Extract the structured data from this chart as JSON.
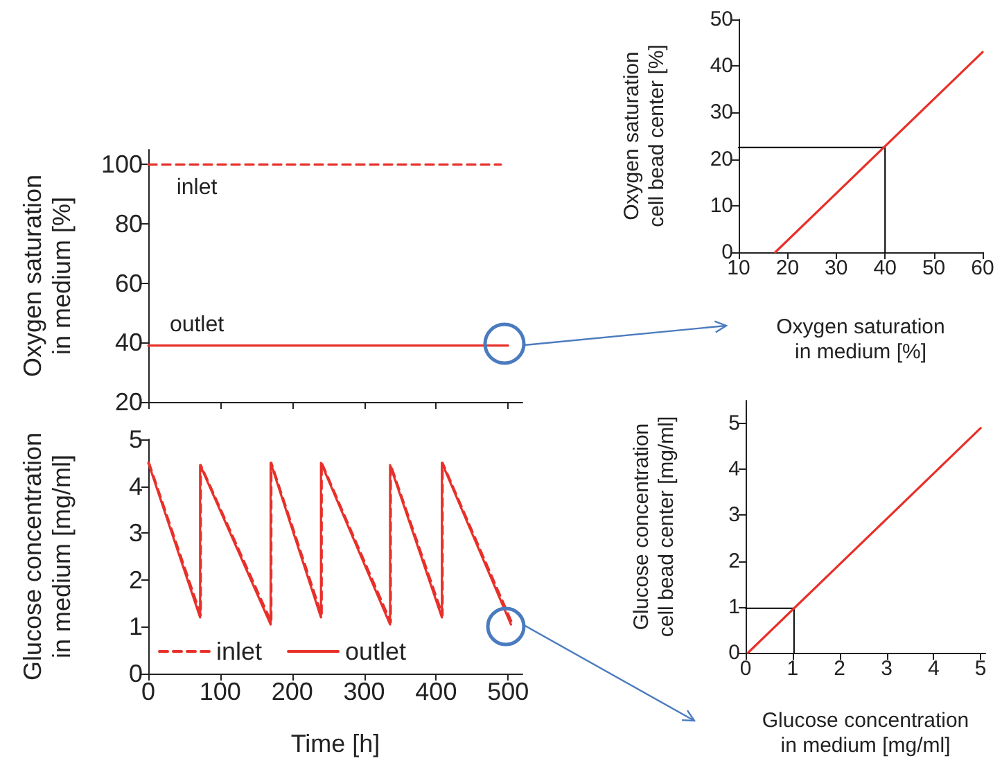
{
  "chart_data": [
    {
      "type": "line",
      "ylabel": "Oxygen saturation\nin medium [%]",
      "xlim": [
        0,
        520
      ],
      "xticks": [
        0,
        100,
        200,
        300,
        400,
        500
      ],
      "ylim": [
        20,
        105
      ],
      "yticks": [
        20,
        40,
        60,
        80,
        100
      ],
      "tick_labels": "y",
      "legend": false,
      "marker": "none",
      "series": [
        {
          "name": "inlet",
          "color": "#e8302a",
          "line_style": "dashed",
          "x": [
            0,
            490
          ],
          "values": [
            100,
            100
          ]
        },
        {
          "name": "outlet",
          "color": "#e8302a",
          "line_style": "solid",
          "x": [
            0,
            500
          ],
          "values": [
            39,
            39
          ]
        }
      ]
    },
    {
      "type": "line",
      "xlabel": "Time [h]",
      "ylabel": "Glucose concentration\nin medium [mg/ml]",
      "xlim": [
        0,
        520
      ],
      "xticks": [
        0,
        100,
        200,
        300,
        400,
        500
      ],
      "ylim": [
        0,
        5
      ],
      "yticks": [
        0,
        1,
        2,
        3,
        4,
        5
      ],
      "legend": "bottom left",
      "marker": "none",
      "series": [
        {
          "name": "inlet",
          "color": "#e8302a",
          "line_style": "dashed",
          "x": [
            1,
            73,
            73,
            171,
            171,
            241,
            241,
            337,
            337,
            409,
            409,
            505
          ],
          "values": [
            4.5,
            1.25,
            4.45,
            1.1,
            4.5,
            1.25,
            4.5,
            1.1,
            4.45,
            1.25,
            4.5,
            1.1
          ]
        },
        {
          "name": "outlet",
          "color": "#e8302a",
          "line_style": "solid",
          "x": [
            0,
            72,
            72,
            170,
            170,
            240,
            240,
            336,
            336,
            408,
            408,
            504
          ],
          "values": [
            4.5,
            1.2,
            4.45,
            1.05,
            4.5,
            1.2,
            4.5,
            1.05,
            4.45,
            1.2,
            4.5,
            1.05
          ]
        }
      ]
    },
    {
      "type": "line",
      "xlabel": "Oxygen saturation\nin medium [%]",
      "ylabel": "Oxygen saturation\ncell bead center [%]",
      "xlim": [
        10,
        60
      ],
      "xticks": [
        10,
        20,
        30,
        40,
        50,
        60
      ],
      "ylim": [
        0,
        50
      ],
      "yticks": [
        0,
        10,
        20,
        30,
        40,
        50
      ],
      "legend": false,
      "marker": "none",
      "series": [
        {
          "color": "#e8302a",
          "line_style": "solid",
          "x": [
            17.5,
            60
          ],
          "values": [
            0,
            43
          ]
        },
        {
          "color": "#000000",
          "line_style": "solid",
          "x": [
            10,
            40,
            40
          ],
          "values": [
            22.5,
            22.5,
            0
          ]
        }
      ]
    },
    {
      "type": "line",
      "xlabel": "Glucose concentration\nin medium [mg/ml]",
      "ylabel": "Glucose concentration\ncell bead center [mg/ml]",
      "xlim": [
        0,
        5.1
      ],
      "xticks": [
        0,
        1,
        2,
        3,
        4,
        5
      ],
      "ylim": [
        0,
        5.5
      ],
      "yticks": [
        0,
        1,
        2,
        3,
        4,
        5
      ],
      "legend": false,
      "marker": "none",
      "series": [
        {
          "color": "#e8302a",
          "line_style": "solid",
          "x": [
            0.05,
            5
          ],
          "values": [
            0,
            4.9
          ]
        },
        {
          "color": "#000000",
          "line_style": "solid",
          "x": [
            0,
            1.03,
            1.03
          ],
          "values": [
            0.97,
            0.97,
            0
          ]
        }
      ]
    }
  ]
}
